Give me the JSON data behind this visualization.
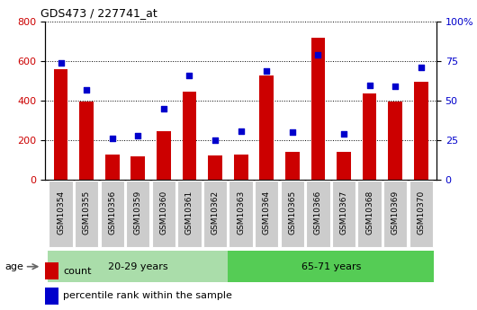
{
  "title": "GDS473 / 227741_at",
  "categories": [
    "GSM10354",
    "GSM10355",
    "GSM10356",
    "GSM10359",
    "GSM10360",
    "GSM10361",
    "GSM10362",
    "GSM10363",
    "GSM10364",
    "GSM10365",
    "GSM10366",
    "GSM10367",
    "GSM10368",
    "GSM10369",
    "GSM10370"
  ],
  "counts": [
    560,
    395,
    130,
    120,
    248,
    445,
    125,
    130,
    530,
    140,
    720,
    140,
    435,
    395,
    495
  ],
  "percentiles": [
    74,
    57,
    26,
    28,
    45,
    66,
    25,
    31,
    69,
    30,
    79,
    29,
    60,
    59,
    71
  ],
  "group1_label": "20-29 years",
  "group2_label": "65-71 years",
  "group1_count": 7,
  "group2_count": 8,
  "bar_color": "#cc0000",
  "dot_color": "#0000cc",
  "group1_bg": "#aaddaa",
  "group2_bg": "#55cc55",
  "tick_bg": "#cccccc",
  "ylim_left": [
    0,
    800
  ],
  "ylim_right": [
    0,
    100
  ],
  "yticks_left": [
    0,
    200,
    400,
    600,
    800
  ],
  "yticks_right": [
    0,
    25,
    50,
    75,
    100
  ],
  "ytick_labels_right": [
    "0",
    "25",
    "50",
    "75",
    "100%"
  ],
  "legend_count": "count",
  "legend_pct": "percentile rank within the sample",
  "age_label": "age"
}
